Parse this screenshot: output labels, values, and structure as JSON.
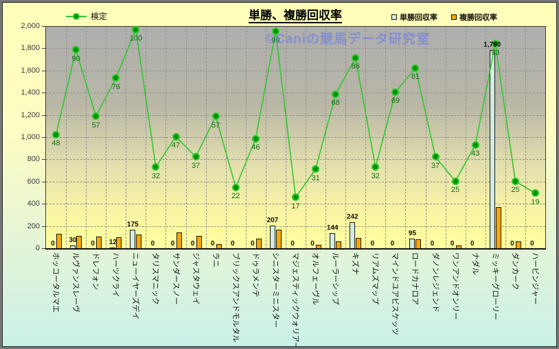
{
  "header": {
    "title": "単勝、複勝回収率",
    "watermark": "©Caniの競馬データ研究室"
  },
  "legend": {
    "kentei_label": "検定",
    "tansho_label": "単勝回収率",
    "fukusho_label": "複勝回収率"
  },
  "colors": {
    "line": "#2ec72e",
    "marker": "#059305",
    "tansho_bar": "#d2ecdf",
    "fukusho_bar": "#f8a700"
  },
  "chart_data": {
    "type": "bar",
    "subtype": "combo-bar-line",
    "title": "単勝、複勝回収率",
    "legend_position": "top",
    "grid": true,
    "categories": [
      "ホッコータルマエ",
      "ルヴァンスレーヴ",
      "ドレフォン",
      "ハーツクライ",
      "ニューイヤーズデイ",
      "タリスマニック",
      "サンダースノー",
      "ジャスタウェイ",
      "ラニ",
      "ブリックスアンドモルタル",
      "ドゥラメンテ",
      "シニスターミニスター",
      "マジェスティックウォリアー",
      "オルフェーヴル",
      "ルーラーシップ",
      "キズナ",
      "リアムズマップ",
      "マインドユアビスケッツ",
      "ロードカナロア",
      "ダノンレジェンド",
      "ワンアンドオンリー",
      "ナダル",
      "ミッキーグローリー",
      "ダンカーク",
      "ハービンジャー"
    ],
    "series": [
      {
        "name": "検定",
        "type": "line",
        "axis": "secondary",
        "color": "#2ec72e",
        "values": [
          48,
          90,
          57,
          76,
          100,
          32,
          47,
          37,
          57,
          22,
          46,
          99,
          17,
          31,
          68,
          86,
          32,
          69,
          81,
          37,
          25,
          43,
          93,
          25,
          19
        ]
      },
      {
        "name": "単勝回収率",
        "type": "bar",
        "axis": "primary",
        "color": "#d2ecdf",
        "values": [
          0,
          30,
          0,
          12,
          175,
          0,
          0,
          0,
          0,
          0,
          0,
          207,
          0,
          0,
          144,
          242,
          0,
          0,
          95,
          0,
          0,
          0,
          1790,
          0,
          0
        ],
        "labels": [
          "0",
          "30",
          "0",
          "12",
          "175",
          "0",
          "0",
          "0",
          "0",
          "0",
          "0",
          "207",
          "0",
          "0",
          "144",
          "242",
          "0",
          "0",
          "95",
          "0",
          "0",
          "0",
          "1,790",
          "0",
          "0"
        ]
      },
      {
        "name": "複勝回収率",
        "type": "bar",
        "axis": "primary",
        "color": "#f8a700",
        "labels_shown": false,
        "values": [
          135,
          120,
          110,
          105,
          130,
          0,
          150,
          120,
          45,
          0,
          95,
          175,
          0,
          40,
          65,
          100,
          0,
          0,
          85,
          0,
          30,
          0,
          375,
          70,
          0
        ]
      }
    ],
    "y_axis": {
      "min": 0,
      "max": 2000,
      "step": 200,
      "tick_labels": [
        "0",
        "200",
        "400",
        "600",
        "800",
        "1,000",
        "1,200",
        "1,400",
        "1,600",
        "1,800",
        "2,000"
      ]
    },
    "secondary_axis": {
      "visible": false,
      "approx_plotted_range": [
        -9,
        101
      ]
    }
  }
}
